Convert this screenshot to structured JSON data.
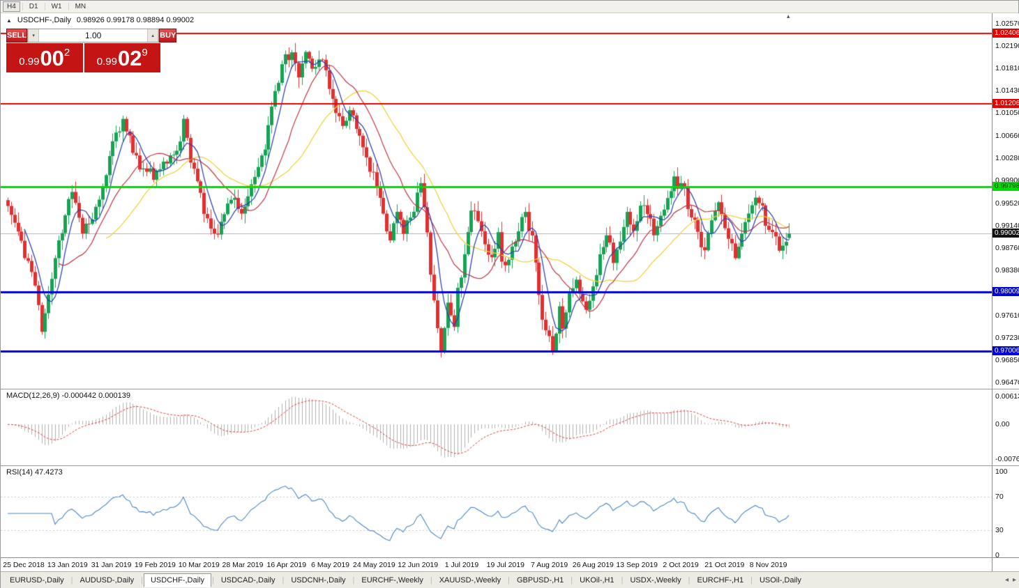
{
  "colors": {
    "up": "#17a254",
    "down": "#e03030",
    "ma_fast": "#2d3fae",
    "ma_mid": "#c23b4b",
    "ma_slow": "#edd23a",
    "macd_hist": "#b0b0b0",
    "macd_signal": "#e04040",
    "rsi": "#4a86c8",
    "price_line": "#b4b4b4"
  },
  "icons": {
    "collapse": "▲",
    "spin_up": "▴",
    "spin_down": "▾",
    "shift_marker": "▴",
    "tab_scroll_left": "◂",
    "tab_scroll_right": "▸"
  },
  "toolbar": {
    "timeframes": [
      {
        "label": "H4",
        "active": true
      },
      {
        "label": "D1",
        "active": false
      },
      {
        "label": "W1",
        "active": false
      },
      {
        "label": "MN",
        "active": false
      }
    ]
  },
  "chart": {
    "title": "USDCHF-,Daily",
    "ohlc_text": "0.98926 0.99178 0.98894 0.99002"
  },
  "trade_panel": {
    "sell_label": "SELL",
    "buy_label": "BUY",
    "volume_value": "1.00",
    "sell_price": {
      "big": "0.99",
      "pips": "00",
      "pipette": "2"
    },
    "buy_price": {
      "big": "0.99",
      "pips": "02",
      "pipette": "9"
    }
  },
  "main_axis": {
    "labels": [
      "1.02570",
      "1.02190",
      "1.01810",
      "1.01430",
      "1.01050",
      "1.00660",
      "1.00280",
      "0.99900",
      "0.99520",
      "0.99140",
      "0.98760",
      "0.98380",
      "0.97610",
      "0.97230",
      "0.96850",
      "0.96470"
    ],
    "badges": [
      {
        "text": "1.02406",
        "bg": "#e60000",
        "fg": "#ffffff"
      },
      {
        "text": "1.01206",
        "bg": "#e60000",
        "fg": "#ffffff"
      },
      {
        "text": "0.99798",
        "bg": "#00dd00",
        "fg": "#003300"
      },
      {
        "text": "0.99002",
        "bg": "#111111",
        "fg": "#ffffff"
      },
      {
        "text": "0.98009",
        "bg": "#0000dd",
        "fg": "#ffffff"
      },
      {
        "text": "0.97006",
        "bg": "#0000dd",
        "fg": "#ffffff"
      }
    ]
  },
  "hlines": [
    {
      "price": 1.02406,
      "color": "#e60000",
      "width": 2
    },
    {
      "price": 1.01206,
      "color": "#e60000",
      "width": 2
    },
    {
      "price": 0.99798,
      "color": "#00dd00",
      "width": 3
    },
    {
      "price": 0.98009,
      "color": "#0000dd",
      "width": 3
    },
    {
      "price": 0.97006,
      "color": "#0000dd",
      "width": 3
    }
  ],
  "current_price": {
    "value": 0.99002,
    "label": "0.99002"
  },
  "macd_panel": {
    "label": "MACD(12,26,9) -0.000442 0.000139",
    "axis": [
      "0.00613",
      "0.00",
      "-0.00761"
    ],
    "range": [
      -0.00761,
      0.00613
    ]
  },
  "rsi_panel": {
    "label": "RSI(14) 47.4273",
    "axis": [
      "100",
      "70",
      "30",
      "0"
    ],
    "levels": [
      70,
      30
    ]
  },
  "date_axis": {
    "labels": [
      "25 Dec 2018",
      "13 Jan 2019",
      "31 Jan 2019",
      "19 Feb 2019",
      "10 Mar 2019",
      "28 Mar 2019",
      "16 Apr 2019",
      "6 May 2019",
      "24 May 2019",
      "12 Jun 2019",
      "1 Jul 2019",
      "19 Jul 2019",
      "7 Aug 2019",
      "26 Aug 2019",
      "13 Sep 2019",
      "2 Oct 2019",
      "21 Oct 2019",
      "8 Nov 2019"
    ]
  },
  "tabs": {
    "active": "USDCHF-,Daily",
    "items": [
      {
        "label": "EURUSD-,Daily"
      },
      {
        "label": "AUDUSD-,Daily"
      },
      {
        "label": "USDCHF-,Daily"
      },
      {
        "label": "USDCAD-,Daily"
      },
      {
        "label": "USDCNH-,Daily"
      },
      {
        "label": "EURCHF-,Weekly"
      },
      {
        "label": "XAUUSD-,Weekly"
      },
      {
        "label": "GBPUSD-,H1"
      },
      {
        "label": "UKOil-,H1"
      },
      {
        "label": "USDX-,Weekly"
      },
      {
        "label": "EURCHF-,H1"
      },
      {
        "label": "USOil-,Daily"
      }
    ]
  },
  "chart_data": {
    "type": "candlestick",
    "symbol": "USDCHF",
    "timeframe": "Daily",
    "count": 232,
    "y_range": [
      0.9647,
      1.0257
    ],
    "ohlc_current": {
      "open": 0.98926,
      "high": 0.99178,
      "low": 0.98894,
      "close": 0.99002
    },
    "price_keypoints": [
      [
        0,
        0.9945
      ],
      [
        3,
        0.99
      ],
      [
        5,
        0.9862
      ],
      [
        8,
        0.982
      ],
      [
        10,
        0.973
      ],
      [
        11,
        0.9762
      ],
      [
        14,
        0.986
      ],
      [
        19,
        0.9975
      ],
      [
        22,
        0.9906
      ],
      [
        27,
        0.995
      ],
      [
        31,
        1.0058
      ],
      [
        34,
        1.009
      ],
      [
        39,
        1.0012
      ],
      [
        43,
        1.0
      ],
      [
        47,
        1.0026
      ],
      [
        50,
        1.004
      ],
      [
        52,
        1.0088
      ],
      [
        54,
        1.0022
      ],
      [
        57,
        0.9962
      ],
      [
        60,
        0.9902
      ],
      [
        62,
        0.9895
      ],
      [
        66,
        0.9963
      ],
      [
        69,
        0.994
      ],
      [
        73,
        0.999
      ],
      [
        76,
        1.0048
      ],
      [
        79,
        1.0148
      ],
      [
        82,
        1.0198
      ],
      [
        84,
        1.0208
      ],
      [
        86,
        1.0162
      ],
      [
        88,
        1.0212
      ],
      [
        90,
        1.0185
      ],
      [
        93,
        1.0194
      ],
      [
        96,
        1.0122
      ],
      [
        99,
        1.0076
      ],
      [
        101,
        1.0108
      ],
      [
        103,
        1.0086
      ],
      [
        105,
        1.0042
      ],
      [
        107,
        1.0008
      ],
      [
        109,
        0.9986
      ],
      [
        111,
        0.9932
      ],
      [
        113,
        0.9886
      ],
      [
        115,
        0.9934
      ],
      [
        117,
        0.9906
      ],
      [
        120,
        0.9944
      ],
      [
        122,
        0.9984
      ],
      [
        124,
        0.99
      ],
      [
        125,
        0.9832
      ],
      [
        127,
        0.9742
      ],
      [
        128,
        0.9702
      ],
      [
        130,
        0.979
      ],
      [
        132,
        0.9748
      ],
      [
        133,
        0.98
      ],
      [
        136,
        0.9898
      ],
      [
        137,
        0.9944
      ],
      [
        139,
        0.992
      ],
      [
        141,
        0.9876
      ],
      [
        143,
        0.9862
      ],
      [
        145,
        0.99
      ],
      [
        146,
        0.9846
      ],
      [
        149,
        0.987
      ],
      [
        151,
        0.991
      ],
      [
        153,
        0.9932
      ],
      [
        155,
        0.989
      ],
      [
        157,
        0.98
      ],
      [
        158,
        0.9756
      ],
      [
        160,
        0.9722
      ],
      [
        161,
        0.9702
      ],
      [
        162,
        0.9738
      ],
      [
        163,
        0.977
      ],
      [
        164,
        0.9734
      ],
      [
        166,
        0.979
      ],
      [
        168,
        0.9822
      ],
      [
        171,
        0.9774
      ],
      [
        173,
        0.9802
      ],
      [
        175,
        0.9868
      ],
      [
        177,
        0.99
      ],
      [
        179,
        0.9856
      ],
      [
        181,
        0.989
      ],
      [
        183,
        0.9938
      ],
      [
        185,
        0.9902
      ],
      [
        187,
        0.9956
      ],
      [
        189,
        0.994
      ],
      [
        191,
        0.9902
      ],
      [
        193,
        0.993
      ],
      [
        195,
        0.996
      ],
      [
        197,
        0.9998
      ],
      [
        198,
        0.9972
      ],
      [
        200,
        0.9988
      ],
      [
        201,
        0.995
      ],
      [
        204,
        0.9902
      ],
      [
        206,
        0.9868
      ],
      [
        208,
        0.992
      ],
      [
        210,
        0.9948
      ],
      [
        211,
        0.993
      ],
      [
        213,
        0.9888
      ],
      [
        215,
        0.9864
      ],
      [
        217,
        0.99
      ],
      [
        219,
        0.993
      ],
      [
        221,
        0.9966
      ],
      [
        223,
        0.994
      ],
      [
        224,
        0.992
      ],
      [
        226,
        0.9898
      ],
      [
        228,
        0.9878
      ],
      [
        230,
        0.9892
      ],
      [
        231,
        0.99
      ]
    ],
    "indicators": {
      "ma": [
        {
          "color_key": "ma_fast",
          "period": 6
        },
        {
          "color_key": "ma_mid",
          "period": 16
        },
        {
          "color_key": "ma_slow",
          "period": 30
        }
      ],
      "macd": {
        "fast": 12,
        "slow": 26,
        "signal": 9,
        "current": "-0.000442 0.000139"
      },
      "rsi": {
        "period": 14,
        "current": 47.4273
      }
    }
  }
}
